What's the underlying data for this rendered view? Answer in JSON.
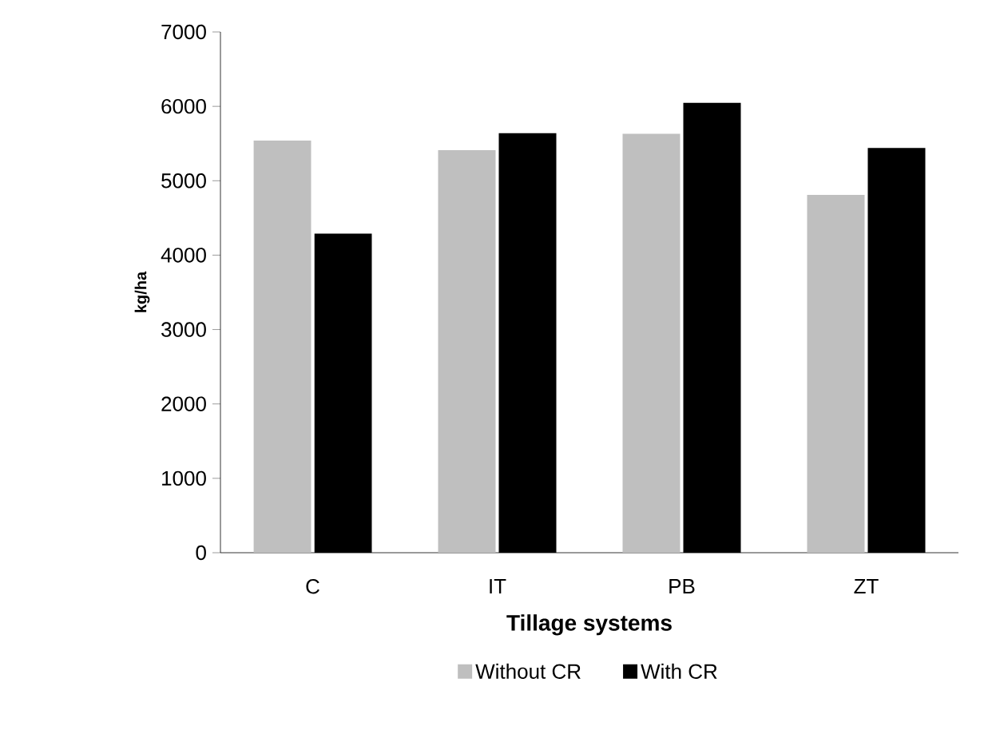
{
  "chart_data": {
    "type": "bar",
    "xlabel": "Tillage systems",
    "ylabel": "kg/ha",
    "categories": [
      "C",
      "IT",
      "PB",
      "ZT"
    ],
    "series": [
      {
        "name": "Without CR",
        "color": "#bfbfbf",
        "values": [
          5540,
          5410,
          5630,
          4810
        ]
      },
      {
        "name": "With CR",
        "color": "#000000",
        "values": [
          4290,
          5640,
          6050,
          5440
        ]
      }
    ],
    "ylim": [
      0,
      7000
    ],
    "yticks": [
      0,
      1000,
      2000,
      3000,
      4000,
      5000,
      6000,
      7000
    ],
    "grid": false,
    "legend": "bottom"
  }
}
